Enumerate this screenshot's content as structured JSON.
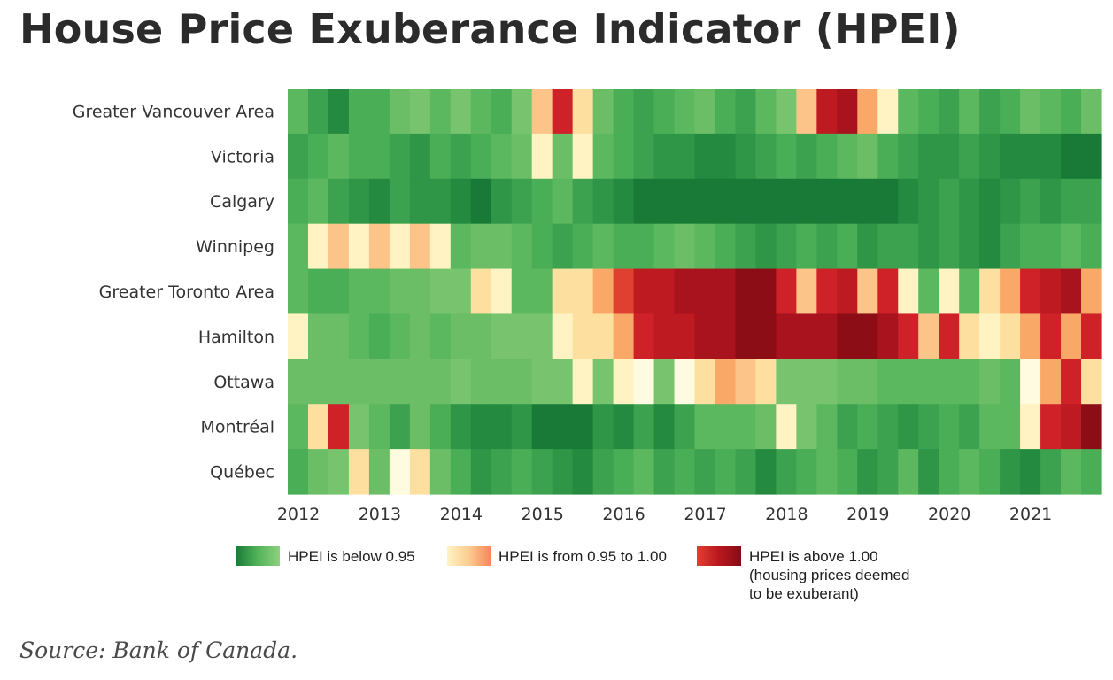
{
  "title": "House Price Exuberance Indicator (HPEI)",
  "source": "Source: Bank of Canada.",
  "chart_data": {
    "type": "heatmap",
    "title": "House Price Exuberance Indicator (HPEI)",
    "rows": [
      "Greater Vancouver Area",
      "Victoria",
      "Calgary",
      "Winnipeg",
      "Greater Toronto Area",
      "Hamilton",
      "Ottawa",
      "Montréal",
      "Québec"
    ],
    "year_ticks": [
      "2012",
      "2013",
      "2014",
      "2015",
      "2016",
      "2017",
      "2018",
      "2019",
      "2020",
      "2021"
    ],
    "x_range": [
      2012,
      2021.75
    ],
    "columns_per_year": 4,
    "color_scale": {
      "green": [
        "#78c46e",
        "#6cbe66",
        "#5cb85f",
        "#4aae57",
        "#3ca24f",
        "#2f9547",
        "#238a3f",
        "#187a36"
      ],
      "yellow_orange": [
        "#fff3c4",
        "#fde0a0",
        "#fcc489",
        "#f9a867",
        "#f5855a"
      ],
      "red": [
        "#e04030",
        "#cf2128",
        "#bd1a22",
        "#a8131d",
        "#8c0d16"
      ]
    },
    "encoding": "Codes g1–g8 are shades of green (HPEI below 0.95, g8 darkest), y1–y5 yellow to orange (HPEI from 0.95 to 1.00), r1–r5 shades of red (HPEI above 1.00, r5 darkest).",
    "cells": [
      [
        "g3",
        "g5",
        "g7",
        "g4",
        "g4",
        "g2",
        "g1",
        "g3",
        "g1",
        "g3",
        "g4",
        "g1",
        "y3",
        "r2",
        "y2",
        "g2",
        "g4",
        "g5",
        "g4",
        "g3",
        "g2",
        "g4",
        "g5",
        "g3",
        "g1",
        "y3",
        "r3",
        "r4",
        "y4",
        "y1",
        "g3",
        "g4",
        "g5",
        "g3",
        "g5",
        "g4",
        "g2",
        "g3",
        "g4",
        "g2"
      ],
      [
        "g5",
        "g4",
        "g3",
        "g4",
        "g4",
        "g5",
        "g6",
        "g4",
        "g5",
        "g4",
        "g3",
        "g2",
        "y1",
        "g2",
        "y1",
        "g3",
        "g4",
        "g5",
        "g6",
        "g6",
        "g7",
        "g7",
        "g6",
        "g5",
        "g4",
        "g5",
        "g4",
        "g3",
        "g2",
        "g4",
        "g5",
        "g6",
        "g6",
        "g5",
        "g6",
        "g7",
        "g7",
        "g7",
        "g8",
        "g8"
      ],
      [
        "g4",
        "g3",
        "g5",
        "g6",
        "g7",
        "g5",
        "g6",
        "g6",
        "g7",
        "g8",
        "g6",
        "g5",
        "g4",
        "g3",
        "g5",
        "g6",
        "g7",
        "g8",
        "g8",
        "g8",
        "g8",
        "g8",
        "g8",
        "g8",
        "g8",
        "g8",
        "g8",
        "g8",
        "g8",
        "g8",
        "g7",
        "g6",
        "g5",
        "g6",
        "g7",
        "g6",
        "g5",
        "g6",
        "g5",
        "g5"
      ],
      [
        "g3",
        "y1",
        "y3",
        "y1",
        "y3",
        "y1",
        "y3",
        "y1",
        "g3",
        "g2",
        "g2",
        "g3",
        "g4",
        "g5",
        "g4",
        "g3",
        "g4",
        "g4",
        "g3",
        "g2",
        "g3",
        "g4",
        "g5",
        "g6",
        "g5",
        "g4",
        "g5",
        "g4",
        "g6",
        "g5",
        "g5",
        "g6",
        "g5",
        "g6",
        "g7",
        "g5",
        "g4",
        "g4",
        "g3",
        "g4"
      ],
      [
        "g3",
        "g4",
        "g4",
        "g3",
        "g3",
        "g2",
        "g2",
        "g1",
        "g1",
        "y2",
        "y1",
        "g3",
        "g3",
        "y2",
        "y2",
        "y4",
        "r1",
        "r3",
        "r3",
        "r4",
        "r4",
        "r4",
        "r5",
        "r5",
        "r2",
        "y3",
        "r2",
        "r3",
        "y3",
        "r2",
        "y1",
        "g3",
        "y1",
        "g3",
        "y2",
        "y4",
        "r2",
        "r3",
        "r4",
        "y4"
      ],
      [
        "y1",
        "g2",
        "g2",
        "g3",
        "g4",
        "g3",
        "g2",
        "g3",
        "g2",
        "g2",
        "g1",
        "g1",
        "g1",
        "y1",
        "y2",
        "y2",
        "y4",
        "r2",
        "r3",
        "r3",
        "r4",
        "r4",
        "r5",
        "r5",
        "r4",
        "r4",
        "r4",
        "r5",
        "r5",
        "r4",
        "r2",
        "y3",
        "r2",
        "y2",
        "y1",
        "y2",
        "y4",
        "r2",
        "y4",
        "r2"
      ],
      [
        "g2",
        "g2",
        "g2",
        "g2",
        "g2",
        "g2",
        "g2",
        "g2",
        "g1",
        "g2",
        "g2",
        "g2",
        "g1",
        "g1",
        "y1",
        "g1",
        "y1",
        "y0",
        "g1",
        "y0",
        "y2",
        "y4",
        "y3",
        "y2",
        "g1",
        "g1",
        "g1",
        "g2",
        "g2",
        "g3",
        "g3",
        "g3",
        "g3",
        "g3",
        "g2",
        "g3",
        "y0",
        "y4",
        "r2",
        "y2"
      ],
      [
        "g3",
        "y2",
        "r2",
        "g1",
        "g3",
        "g5",
        "g2",
        "g4",
        "g6",
        "g7",
        "g7",
        "g6",
        "g8",
        "g8",
        "g8",
        "g6",
        "g7",
        "g5",
        "g7",
        "g5",
        "g3",
        "g3",
        "g3",
        "g2",
        "y1",
        "g1",
        "g3",
        "g5",
        "g4",
        "g5",
        "g6",
        "g5",
        "g4",
        "g5",
        "g3",
        "g3",
        "y1",
        "r2",
        "r3",
        "r5"
      ],
      [
        "g4",
        "g2",
        "g1",
        "y2",
        "g2",
        "y0",
        "y2",
        "g2",
        "g4",
        "g6",
        "g5",
        "g4",
        "g5",
        "g6",
        "g7",
        "g5",
        "g4",
        "g3",
        "g5",
        "g4",
        "g5",
        "g4",
        "g5",
        "g7",
        "g5",
        "g4",
        "g3",
        "g4",
        "g6",
        "g5",
        "g3",
        "g6",
        "g4",
        "g3",
        "g4",
        "g6",
        "g7",
        "g5",
        "g3",
        "g4"
      ]
    ]
  },
  "legend": {
    "items": [
      {
        "label": "HPEI is below 0.95",
        "colors": [
          "#187a36",
          "#52b35a",
          "#8ed07e"
        ]
      },
      {
        "label": "HPEI is from 0.95 to 1.00",
        "colors": [
          "#fff3c4",
          "#fccb8f",
          "#f5855a"
        ]
      },
      {
        "label_lines": [
          "HPEI is above 1.00",
          "(housing prices deemed",
          "to be exuberant)"
        ],
        "colors": [
          "#e04030",
          "#b9171f",
          "#850c15"
        ]
      }
    ]
  }
}
